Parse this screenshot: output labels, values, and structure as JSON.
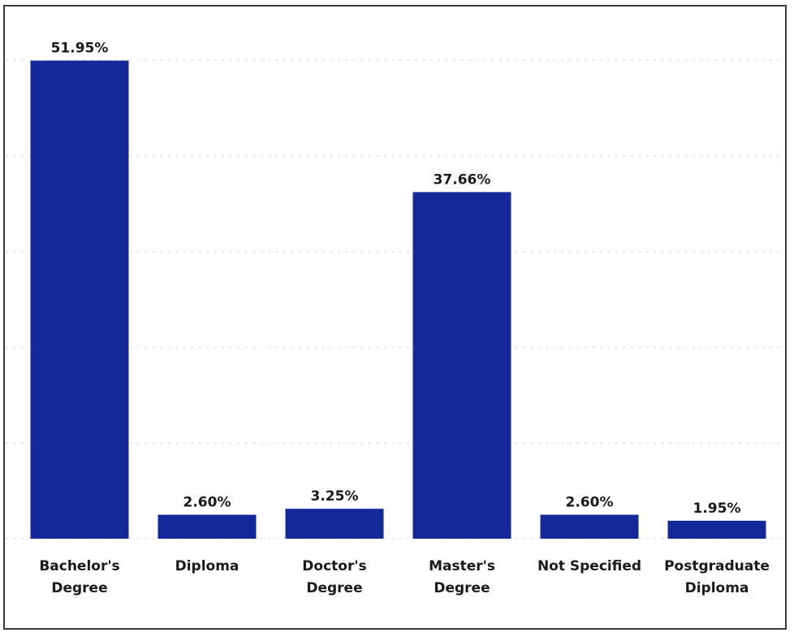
{
  "chart_data": {
    "type": "bar",
    "categories": [
      [
        "Bachelor's",
        "Degree"
      ],
      [
        "Diploma"
      ],
      [
        "Doctor's",
        "Degree"
      ],
      [
        "Master's",
        "Degree"
      ],
      [
        "Not Specified"
      ],
      [
        "Postgraduate",
        "Diploma"
      ]
    ],
    "values": [
      51.95,
      2.6,
      3.25,
      37.66,
      2.6,
      1.95
    ],
    "value_labels": [
      "51.95%",
      "2.60%",
      "3.25%",
      "37.66%",
      "2.60%",
      "1.95%"
    ],
    "ylim": [
      0,
      52
    ],
    "grid": true,
    "bar_color": "#14289a",
    "title": "",
    "xlabel": "",
    "ylabel": ""
  }
}
